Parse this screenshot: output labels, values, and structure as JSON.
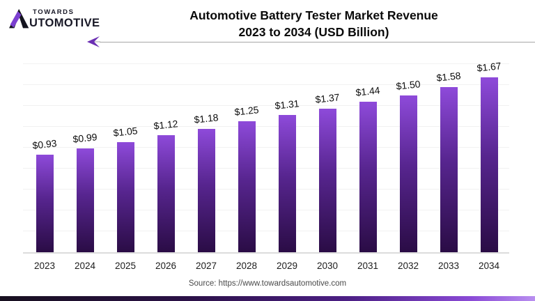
{
  "logo": {
    "towards": "TOWARDS",
    "automotive_rest": "UTOMOTIVE"
  },
  "header": {
    "title_line1": "Automotive Battery Tester Market Revenue",
    "title_line2": "2023 to 2034 (USD Billion)"
  },
  "chart_data": {
    "type": "bar",
    "title": "Automotive Battery Tester Market Revenue 2023 to 2034 (USD Billion)",
    "categories": [
      "2023",
      "2024",
      "2025",
      "2026",
      "2027",
      "2028",
      "2029",
      "2030",
      "2031",
      "2032",
      "2033",
      "2034"
    ],
    "values": [
      0.93,
      0.99,
      1.05,
      1.12,
      1.18,
      1.25,
      1.31,
      1.37,
      1.44,
      1.5,
      1.58,
      1.67
    ],
    "value_labels": [
      "$0.93",
      "$0.99",
      "$1.05",
      "$1.12",
      "$1.18",
      "$1.25",
      "$1.31",
      "$1.37",
      "$1.44",
      "$1.50",
      "$1.58",
      "$1.67"
    ],
    "xlabel": "",
    "ylabel": "",
    "unit": "USD Billion",
    "ylim": [
      0,
      1.9
    ],
    "grid": true,
    "legend": "none",
    "bar_color_top": "#8e4ada",
    "bar_color_bottom": "#2a0c45"
  },
  "footer": {
    "source": "Source: https://www.towardsautomotive.com"
  },
  "colors": {
    "accent_purple": "#6b2fb3",
    "title_text": "#0a0a0a",
    "gridline": "#f1f1f1",
    "baseline": "#dcdcdc"
  }
}
